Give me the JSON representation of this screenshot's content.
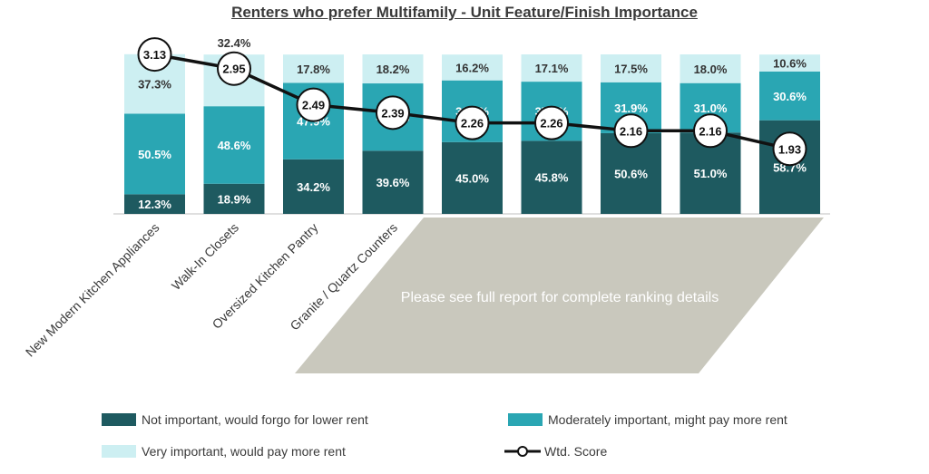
{
  "chart_data": {
    "type": "bar",
    "stacked": true,
    "title": "Renters who prefer Multifamily - Unit Feature/Finish Importance",
    "categories": [
      "New Modern Kitchen Appliances",
      "Walk-In Closets",
      "Oversized Kitchen Pantry",
      "Granite / Quartz Counters",
      "",
      "",
      "",
      "",
      ""
    ],
    "series": [
      {
        "name": "Not important, would forgo for lower rent",
        "color": "#1e5a60",
        "values": [
          12.3,
          18.9,
          34.2,
          39.6,
          45.0,
          45.8,
          50.6,
          51.0,
          58.7
        ],
        "labels": [
          "12.3%",
          "18.9%",
          "34.2%",
          "39.6%",
          "45.0%",
          "45.8%",
          "50.6%",
          "51.0%",
          "58.7%"
        ]
      },
      {
        "name": "Moderately important, might pay more rent",
        "color": "#2aa6b3",
        "values": [
          50.5,
          48.6,
          47.9,
          42.2,
          38.7,
          37.1,
          31.9,
          31.0,
          30.6
        ],
        "labels": [
          "50.5%",
          "48.6%",
          "47.9%",
          "42.2%",
          "38.7%",
          "37.1%",
          "31.9%",
          "31.0%",
          "30.6%"
        ]
      },
      {
        "name": "Very important, would pay more rent",
        "color": "#cdeff2",
        "values": [
          37.3,
          32.4,
          17.8,
          18.2,
          16.2,
          17.1,
          17.5,
          18.0,
          10.6
        ],
        "labels": [
          "37.3%",
          "32.4%",
          "17.8%",
          "18.2%",
          "16.2%",
          "17.1%",
          "17.5%",
          "18.0%",
          "10.6%"
        ]
      }
    ],
    "line_series": {
      "name": "Wtd. Score",
      "values": [
        3.13,
        2.95,
        2.49,
        2.39,
        2.26,
        2.26,
        2.16,
        2.16,
        1.93
      ],
      "labels": [
        "3.13",
        "2.95",
        "2.49",
        "2.39",
        "2.26",
        "2.26",
        "2.16",
        "2.16",
        "1.93"
      ],
      "color": "#111111"
    },
    "overlay_text": "Please see full report for complete ranking details",
    "overlay_color": "#c9c8bd"
  },
  "legend": {
    "not_important": "Not important, would forgo for lower rent",
    "moderately": "Moderately important, might pay more rent",
    "very": "Very important, would pay more rent",
    "score": "Wtd. Score"
  }
}
